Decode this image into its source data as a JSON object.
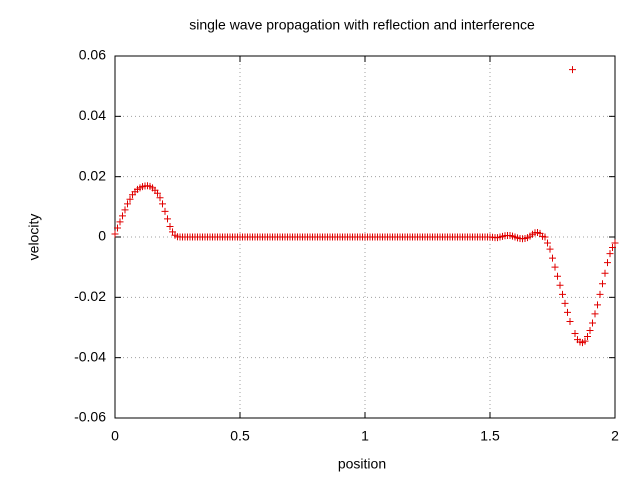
{
  "chart_data": {
    "type": "scatter",
    "title": "single wave propagation with reflection and interference",
    "x_label": "position",
    "y_label": "velocity",
    "xlim": [
      0,
      2
    ],
    "ylim": [
      -0.06,
      0.06
    ],
    "xticks": [
      0,
      0.5,
      1,
      1.5,
      2
    ],
    "yticks": [
      -0.06,
      -0.04,
      -0.02,
      0,
      0.02,
      0.04,
      0.06
    ],
    "grid": true,
    "marker": "+",
    "series": [
      {
        "color": "#e00000",
        "x": [
          0,
          0.01,
          0.02,
          0.03,
          0.04,
          0.05,
          0.06,
          0.07,
          0.08,
          0.09,
          0.1,
          0.11,
          0.12,
          0.13,
          0.14,
          0.15,
          0.16,
          0.17,
          0.18,
          0.19,
          0.2,
          0.21,
          0.22,
          0.23,
          0.24,
          0.25,
          0.26,
          0.27,
          0.28,
          0.29,
          0.3,
          0.31,
          0.32,
          0.33,
          0.34,
          0.35,
          0.36,
          0.37,
          0.38,
          0.39,
          0.4,
          0.41,
          0.42,
          0.43,
          0.44,
          0.45,
          0.46,
          0.47,
          0.48,
          0.49,
          0.5,
          0.51,
          0.52,
          0.53,
          0.54,
          0.55,
          0.56,
          0.57,
          0.58,
          0.59,
          0.6,
          0.61,
          0.62,
          0.63,
          0.64,
          0.65,
          0.66,
          0.67,
          0.68,
          0.69,
          0.7,
          0.71,
          0.72,
          0.73,
          0.74,
          0.75,
          0.76,
          0.77,
          0.78,
          0.79,
          0.8,
          0.81,
          0.82,
          0.83,
          0.84,
          0.85,
          0.86,
          0.87,
          0.88,
          0.89,
          0.9,
          0.91,
          0.92,
          0.93,
          0.94,
          0.95,
          0.96,
          0.97,
          0.98,
          0.99,
          1,
          1.01,
          1.02,
          1.03,
          1.04,
          1.05,
          1.06,
          1.07,
          1.08,
          1.09,
          1.1,
          1.11,
          1.12,
          1.13,
          1.14,
          1.15,
          1.16,
          1.17,
          1.18,
          1.19,
          1.2,
          1.21,
          1.22,
          1.23,
          1.24,
          1.25,
          1.26,
          1.27,
          1.28,
          1.29,
          1.3,
          1.31,
          1.32,
          1.33,
          1.34,
          1.35,
          1.36,
          1.37,
          1.38,
          1.39,
          1.4,
          1.41,
          1.42,
          1.43,
          1.44,
          1.45,
          1.46,
          1.47,
          1.48,
          1.49,
          1.5,
          1.51,
          1.52,
          1.53,
          1.54,
          1.55,
          1.56,
          1.57,
          1.58,
          1.59,
          1.6,
          1.61,
          1.62,
          1.63,
          1.64,
          1.65,
          1.66,
          1.67,
          1.68,
          1.69,
          1.7,
          1.71,
          1.72,
          1.73,
          1.74,
          1.75,
          1.76,
          1.77,
          1.78,
          1.79,
          1.8,
          1.81,
          1.82,
          1.83,
          1.84,
          1.85,
          1.86,
          1.87,
          1.88,
          1.89,
          1.9,
          1.91,
          1.92,
          1.93,
          1.94,
          1.95,
          1.96,
          1.97,
          1.98,
          1.99,
          2
        ],
        "values": [
          0.001,
          0.003,
          0.005,
          0.007,
          0.009,
          0.011,
          0.0125,
          0.014,
          0.015,
          0.0158,
          0.0163,
          0.0167,
          0.0169,
          0.017,
          0.0168,
          0.0163,
          0.0155,
          0.0145,
          0.013,
          0.011,
          0.0085,
          0.006,
          0.0035,
          0.0017,
          0.0006,
          0.0001,
          0,
          0,
          0,
          0,
          0,
          0,
          0,
          0,
          0,
          0,
          0,
          0,
          0,
          0,
          0,
          0,
          0,
          0,
          0,
          0,
          0,
          0,
          0,
          0,
          0,
          0,
          0,
          0,
          0,
          0,
          0,
          0,
          0,
          0,
          0,
          0,
          0,
          0,
          0,
          0,
          0,
          0,
          0,
          0,
          0,
          0,
          0,
          0,
          0,
          0,
          0,
          0,
          0,
          0,
          0,
          0,
          0,
          0,
          0,
          0,
          0,
          0,
          0,
          0,
          0,
          0,
          0,
          0,
          0,
          0,
          0,
          0,
          0,
          0,
          0,
          0,
          0,
          0,
          0,
          0,
          0,
          0,
          0,
          0,
          0,
          0,
          0,
          0,
          0,
          0,
          0,
          0,
          0,
          0,
          0,
          0,
          0,
          0,
          0,
          0,
          0,
          0,
          0,
          0,
          0,
          0,
          0,
          0,
          0,
          0,
          0,
          0,
          0,
          0,
          0,
          0,
          0,
          0,
          0,
          0,
          0,
          0,
          0,
          0,
          0,
          -0.0001,
          -0.0002,
          -0.0002,
          0,
          0.0002,
          0.0004,
          0.0005,
          0.0005,
          0.0003,
          0,
          -0.0003,
          -0.0005,
          -0.0006,
          -0.0005,
          -0.0002,
          0.0003,
          0.0009,
          0.0014,
          0.0015,
          0.0012,
          0.0002,
          0,
          -0.002,
          -0.004,
          -0.007,
          -0.01,
          -0.013,
          -0.016,
          -0.019,
          -0.022,
          -0.025,
          -0.028,
          0.0555,
          -0.032,
          -0.034,
          -0.0348,
          -0.035,
          -0.0345,
          -0.033,
          -0.031,
          -0.0285,
          -0.0255,
          -0.0225,
          -0.019,
          -0.0155,
          -0.012,
          -0.0085,
          -0.0055,
          -0.0035,
          -0.002
        ]
      }
    ]
  }
}
